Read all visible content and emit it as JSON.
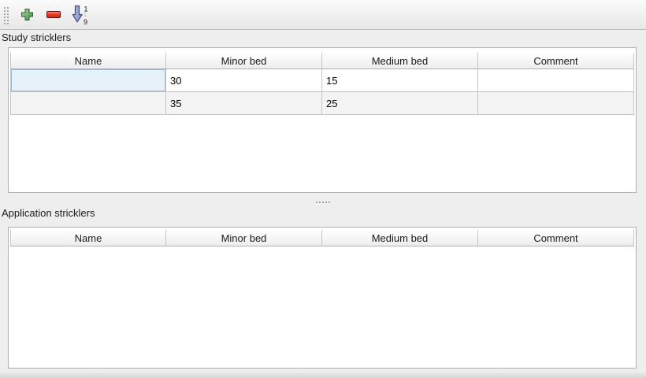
{
  "toolbar": {
    "buttons": [
      {
        "icon": "add-plus-icon"
      },
      {
        "icon": "remove-minus-icon"
      },
      {
        "icon": "sort-ascending-icon",
        "digit_top": "1",
        "digit_bottom": "9"
      }
    ]
  },
  "sections": [
    {
      "label": "Study stricklers",
      "columns": [
        "Name",
        "Minor bed",
        "Medium bed",
        "Comment"
      ],
      "rows": [
        {
          "cells": [
            "",
            "30",
            "15",
            ""
          ]
        },
        {
          "cells": [
            "",
            "35",
            "25",
            ""
          ]
        }
      ],
      "selected": {
        "row": 0,
        "col": 0
      }
    },
    {
      "label": "Application stricklers",
      "columns": [
        "Name",
        "Minor bed",
        "Medium bed",
        "Comment"
      ],
      "rows": []
    }
  ],
  "colors": {
    "window_bg": "#eeeeee",
    "selected_cell_bg": "#e7f1f9",
    "selected_cell_border": "#9db9ce",
    "alt_row_bg": "#f3f3f3",
    "add_green": "#3c8a3c",
    "remove_red": "#ee3b22",
    "sort_arrow_blue": "#8893c4"
  }
}
